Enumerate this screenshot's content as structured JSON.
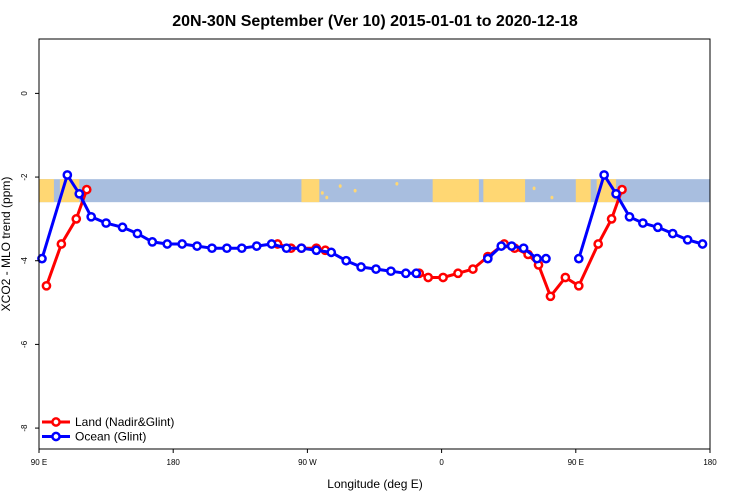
{
  "chart_data": {
    "type": "line",
    "title": "20N-30N September (Ver 10)   2015-01-01 to 2020-12-18",
    "xlabel": "Longitude (deg E)",
    "ylabel": "XCO2 - MLO trend (ppm)",
    "xlim": [
      90,
      540
    ],
    "ylim": [
      -8.5,
      1.3
    ],
    "x_ticks": [
      {
        "value": 90,
        "label": "90 E"
      },
      {
        "value": 180,
        "label": "180"
      },
      {
        "value": 270,
        "label": "90 W"
      },
      {
        "value": 360,
        "label": "0"
      },
      {
        "value": 450,
        "label": "90 E"
      },
      {
        "value": 540,
        "label": "180"
      }
    ],
    "y_ticks": [
      {
        "value": 0,
        "label": "0"
      },
      {
        "value": -2,
        "label": "-2"
      },
      {
        "value": -4,
        "label": "-4"
      },
      {
        "value": -6,
        "label": "-6"
      },
      {
        "value": -8,
        "label": "-8"
      }
    ],
    "map_band": {
      "y_top": -2.05,
      "y_bottom": -2.6,
      "ocean_color": "#A8BEDF",
      "land_color": "#FFD773"
    },
    "legend_position": "bottom-left",
    "series": [
      {
        "name": "Land (Nadir&Glint)",
        "color": "#FF0000",
        "segments": [
          [
            [
              95,
              -4.6
            ],
            [
              105,
              -3.6
            ],
            [
              115,
              -3.0
            ],
            [
              122,
              -2.3
            ]
          ],
          [
            [
              250,
              -3.6
            ],
            [
              259,
              -3.7
            ],
            [
              266,
              -3.7
            ],
            [
              276,
              -3.7
            ],
            [
              282,
              -3.75
            ]
          ],
          [
            [
              345,
              -4.3
            ],
            [
              351,
              -4.4
            ],
            [
              361,
              -4.4
            ],
            [
              371,
              -4.3
            ],
            [
              381,
              -4.2
            ],
            [
              391,
              -3.9
            ],
            [
              402,
              -3.6
            ],
            [
              409,
              -3.7
            ],
            [
              418,
              -3.85
            ],
            [
              425,
              -4.1
            ],
            [
              433,
              -4.85
            ],
            [
              443,
              -4.4
            ],
            [
              452,
              -4.6
            ],
            [
              465,
              -3.6
            ],
            [
              474,
              -3.0
            ],
            [
              481,
              -2.3
            ]
          ]
        ]
      },
      {
        "name": "Ocean (Glint)",
        "color": "#0000FF",
        "segments": [
          [
            [
              92,
              -3.95
            ],
            [
              109,
              -1.95
            ],
            [
              117,
              -2.4
            ],
            [
              125,
              -2.95
            ],
            [
              135,
              -3.1
            ],
            [
              146,
              -3.2
            ],
            [
              156,
              -3.35
            ],
            [
              166,
              -3.55
            ],
            [
              176,
              -3.6
            ],
            [
              186,
              -3.6
            ],
            [
              196,
              -3.65
            ],
            [
              206,
              -3.7
            ],
            [
              216,
              -3.7
            ],
            [
              226,
              -3.7
            ],
            [
              236,
              -3.65
            ],
            [
              246,
              -3.6
            ],
            [
              256,
              -3.7
            ],
            [
              266,
              -3.7
            ],
            [
              276,
              -3.75
            ],
            [
              286,
              -3.8
            ],
            [
              296,
              -4.0
            ],
            [
              306,
              -4.15
            ],
            [
              316,
              -4.2
            ],
            [
              326,
              -4.25
            ],
            [
              336,
              -4.3
            ],
            [
              343,
              -4.3
            ]
          ],
          [
            [
              391,
              -3.95
            ],
            [
              400,
              -3.65
            ],
            [
              407,
              -3.65
            ],
            [
              415,
              -3.7
            ],
            [
              424,
              -3.95
            ],
            [
              430,
              -3.95
            ]
          ],
          [
            [
              452,
              -3.95
            ],
            [
              469,
              -1.95
            ],
            [
              477,
              -2.4
            ],
            [
              486,
              -2.95
            ],
            [
              495,
              -3.1
            ],
            [
              505,
              -3.2
            ],
            [
              515,
              -3.35
            ],
            [
              525,
              -3.5
            ],
            [
              535,
              -3.6
            ]
          ]
        ]
      }
    ]
  }
}
